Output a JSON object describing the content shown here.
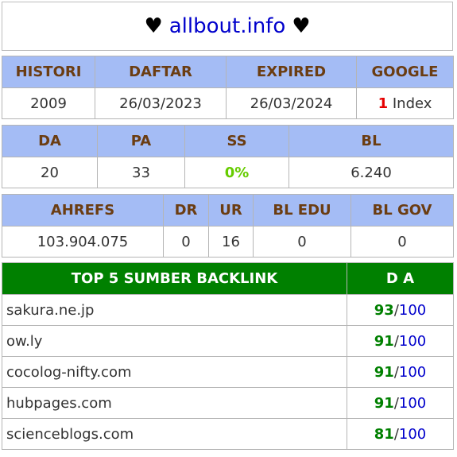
{
  "header": {
    "heart_left": "♥",
    "site": "allbout.info",
    "heart_right": "♥"
  },
  "table1": {
    "headers": [
      "HISTORI",
      "DAFTAR",
      "EXPIRED",
      "GOOGLE"
    ],
    "values": {
      "histori": "2009",
      "daftar": "26/03/2023",
      "expired": "26/03/2024",
      "google_count": "1",
      "google_suffix": " Index"
    }
  },
  "table2": {
    "headers": [
      "DA",
      "PA",
      "SS",
      "BL"
    ],
    "values": {
      "da": "20",
      "pa": "33",
      "ss": "0%",
      "bl": "6.240"
    }
  },
  "table3": {
    "headers": [
      "AHREFS",
      "DR",
      "UR",
      "BL EDU",
      "BL GOV"
    ],
    "values": {
      "ahrefs": "103.904.075",
      "dr": "0",
      "ur": "16",
      "bl_edu": "0",
      "bl_gov": "0"
    }
  },
  "backlinks": {
    "header_source": "TOP 5 SUMBER BACKLINK",
    "header_da": "D A",
    "separator": "/",
    "max": "100",
    "rows": [
      {
        "domain": "sakura.ne.jp",
        "da": "93"
      },
      {
        "domain": "ow.ly",
        "da": "91"
      },
      {
        "domain": "cocolog-nifty.com",
        "da": "91"
      },
      {
        "domain": "hubpages.com",
        "da": "91"
      },
      {
        "domain": "scienceblogs.com",
        "da": "81"
      }
    ]
  },
  "colors": {
    "header_bg": "#a4bcf5",
    "header_text": "#6b3d12",
    "backlink_header_bg": "#008000",
    "link_blue": "#0000cc",
    "da_green": "#008000",
    "ss_green": "#66cc00",
    "google_red": "#e60000"
  }
}
